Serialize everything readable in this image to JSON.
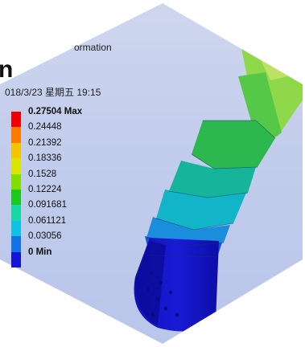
{
  "header": {
    "title_fragment": "n",
    "subtitle": "ormation",
    "datetime": "018/3/23 星期五 19:15"
  },
  "legend": {
    "entries": [
      {
        "label": "0.27504 Max",
        "color": "#ee0000",
        "bold": true
      },
      {
        "label": "0.24448",
        "color": "#ff7a00",
        "bold": false
      },
      {
        "label": "0.21392",
        "color": "#f5c400",
        "bold": false
      },
      {
        "label": "0.18336",
        "color": "#d8e600",
        "bold": false
      },
      {
        "label": "0.1528",
        "color": "#7fe000",
        "bold": false
      },
      {
        "label": "0.12224",
        "color": "#1dc81d",
        "bold": false
      },
      {
        "label": "0.091681",
        "color": "#18d6a6",
        "bold": false
      },
      {
        "label": "0.061121",
        "color": "#12c0e6",
        "bold": false
      },
      {
        "label": "0.03056",
        "color": "#1273e4",
        "bold": false
      },
      {
        "label": "0 Min",
        "color": "#1414d6",
        "bold": true
      }
    ]
  }
}
